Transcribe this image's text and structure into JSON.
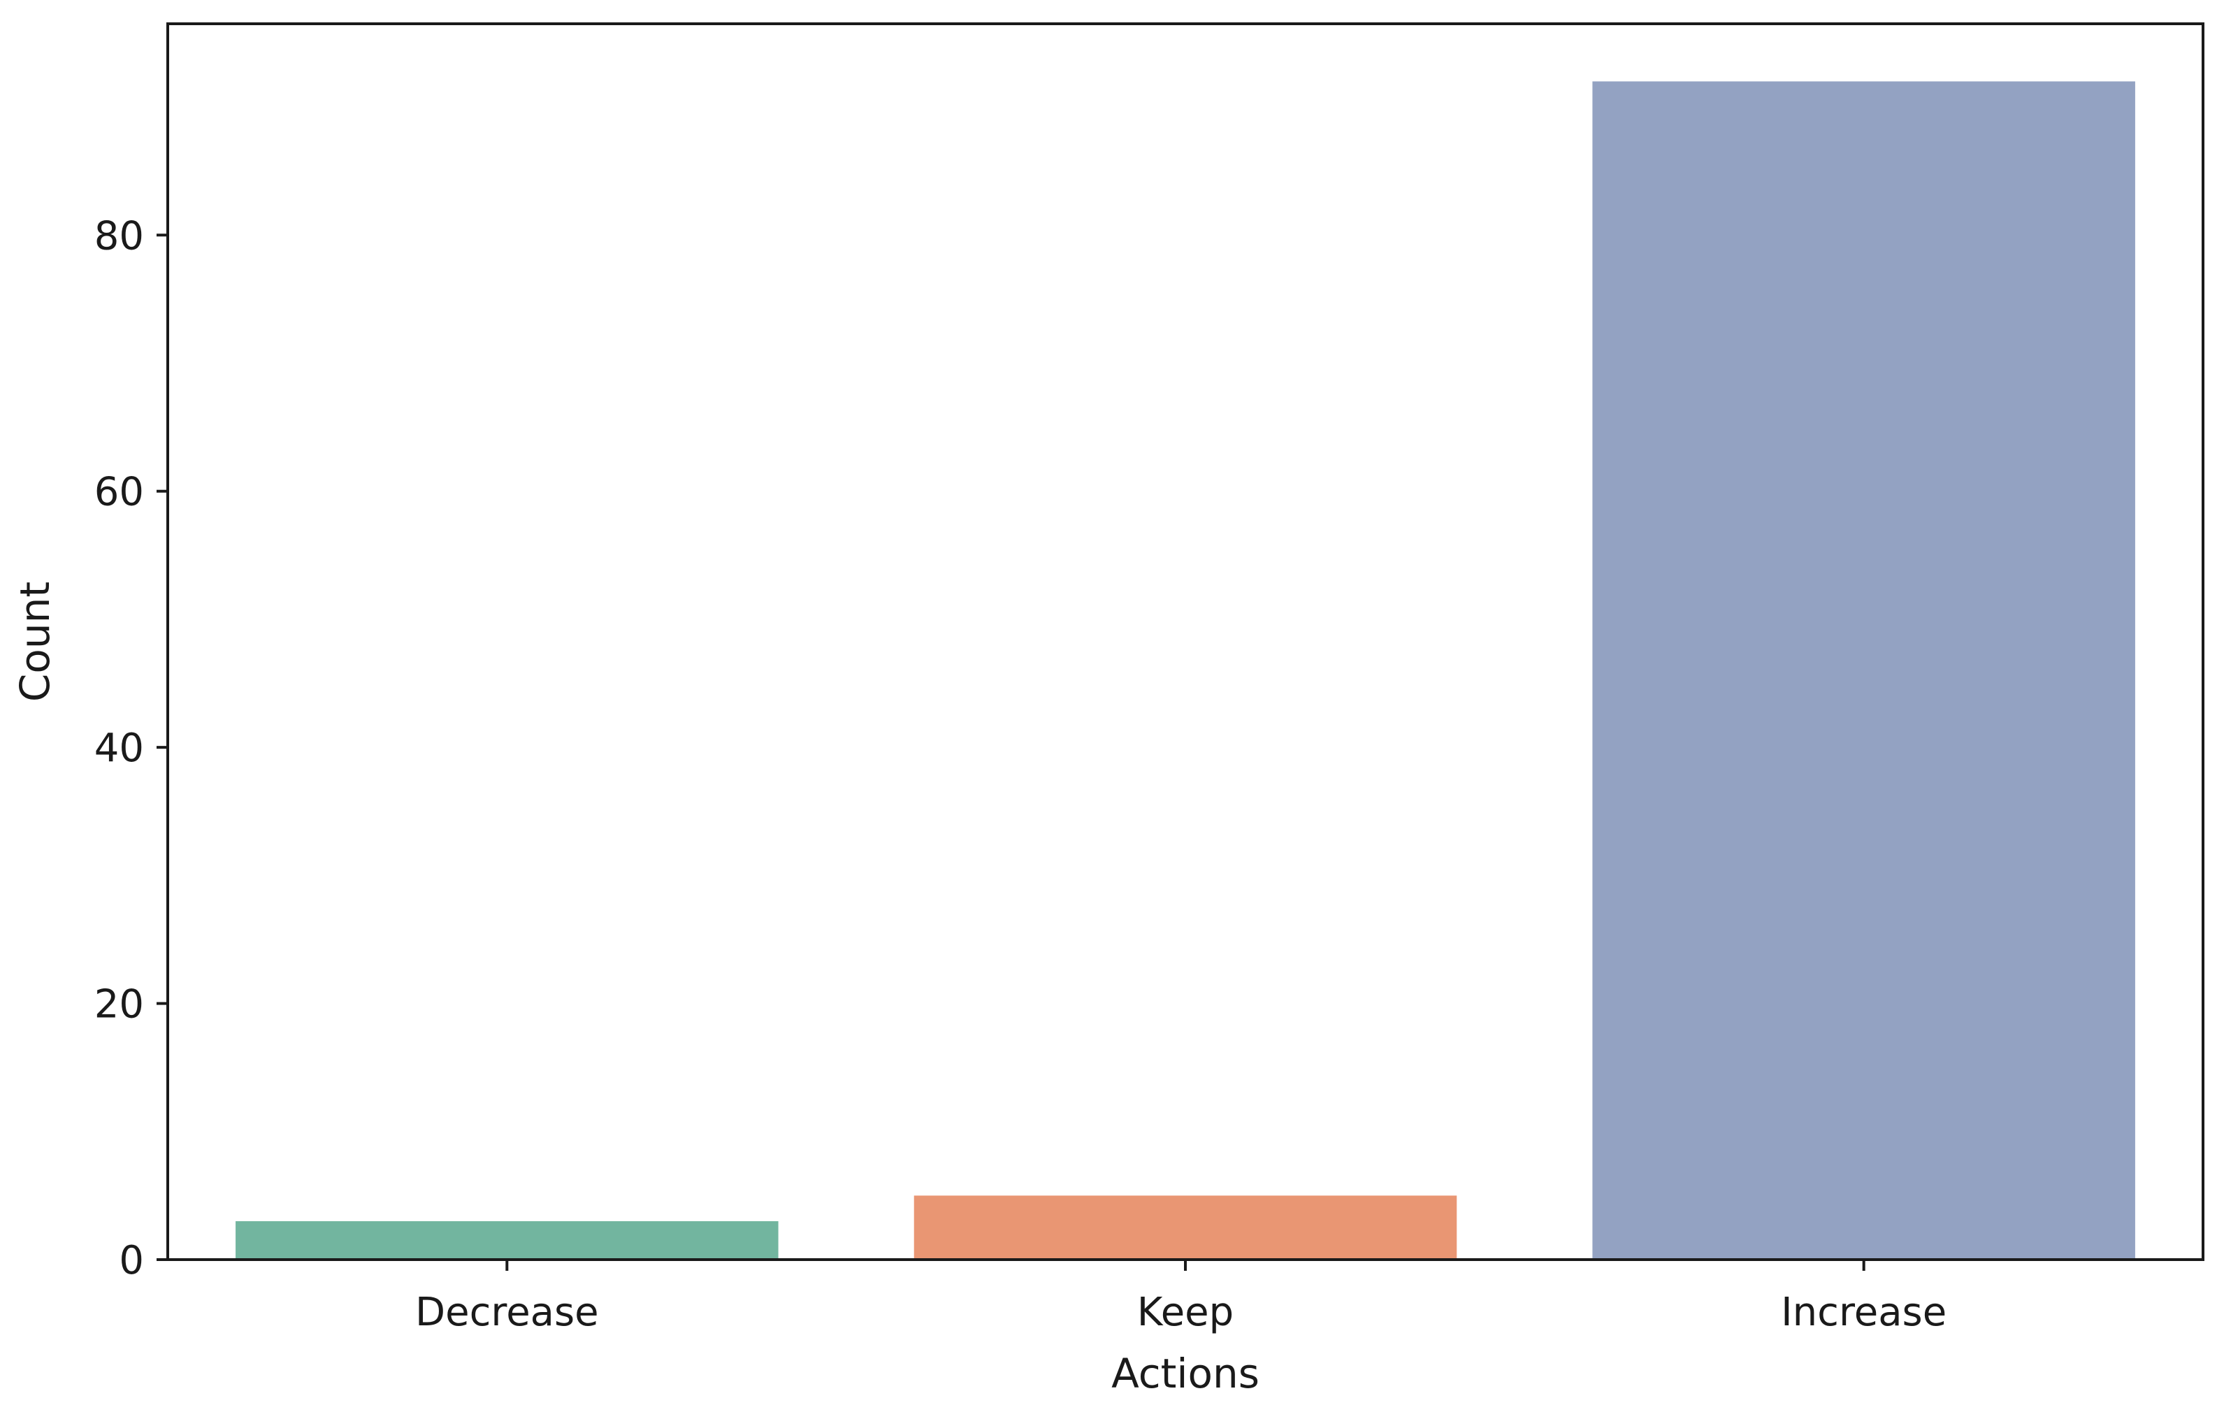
{
  "chart_data": {
    "type": "bar",
    "title": "",
    "xlabel": "Actions",
    "ylabel": "Count",
    "categories": [
      "Decrease",
      "Keep",
      "Increase"
    ],
    "values": [
      3,
      5,
      92
    ],
    "colors": [
      "#72b59f",
      "#e99673",
      "#93a2c2"
    ],
    "ylim": [
      0,
      96.5
    ],
    "yticks": [
      0,
      20,
      40,
      60,
      80
    ],
    "grid": false,
    "legend": "none"
  }
}
